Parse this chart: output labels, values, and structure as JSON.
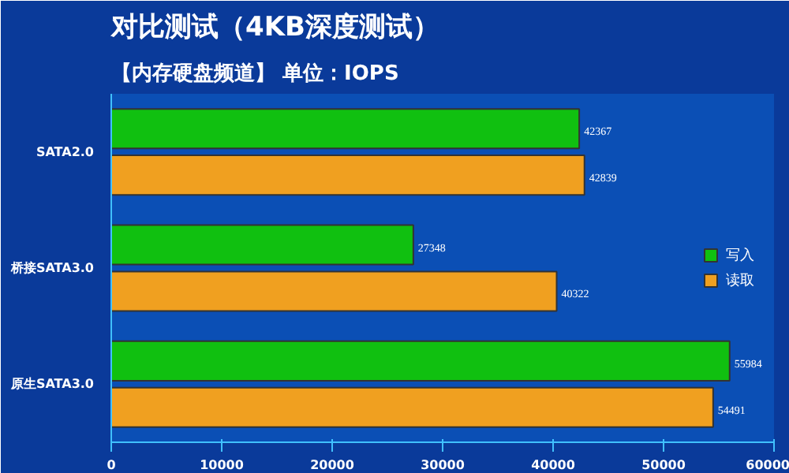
{
  "chart_data": {
    "type": "bar",
    "orientation": "horizontal",
    "title": "对比测试（4KB深度测试）",
    "subtitle": "【内存硬盘频道】 单位：IOPS",
    "categories": [
      "SATA2.0",
      "桥接SATA3.0",
      "原生SATA3.0"
    ],
    "series": [
      {
        "name": "读取",
        "color": "#f0a020",
        "values": [
          42839,
          40322,
          54491
        ]
      },
      {
        "name": "写入",
        "color": "#10c010",
        "values": [
          42367,
          27348,
          55984
        ]
      }
    ],
    "xlim": [
      0,
      60000
    ],
    "xticks": [
      0,
      10000,
      20000,
      30000,
      40000,
      50000,
      60000
    ],
    "data_labels": true,
    "legend": "right",
    "grid": false
  }
}
